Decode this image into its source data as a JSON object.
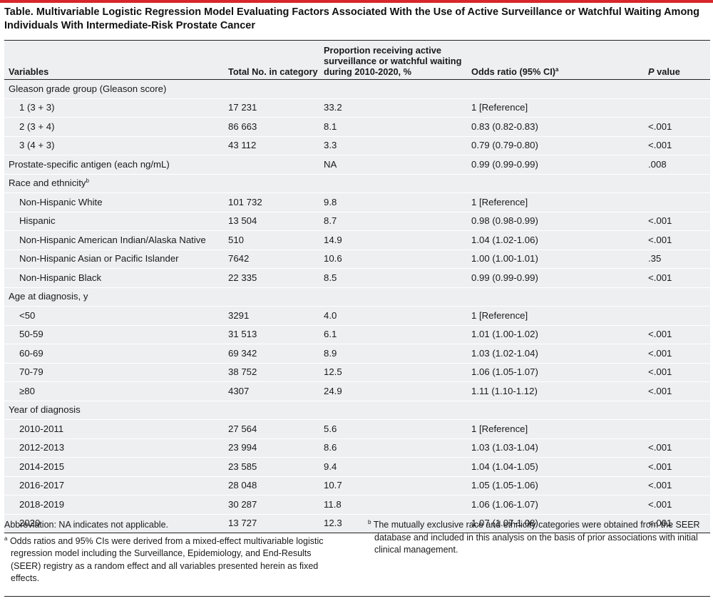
{
  "title": "Table. Multivariable Logistic Regression Model Evaluating Factors Associated With the Use of Active Surveillance or Watchful Waiting Among Individuals With Intermediate-Risk Prostate Cancer",
  "columns": {
    "variables": "Variables",
    "total": "Total No. in category",
    "proportion": "Proportion receiving active surveillance or watchful waiting during 2010-2020, %",
    "odds_ratio": "Odds ratio (95% CI)",
    "odds_ratio_sup": "a",
    "p_value_p": "P",
    "p_value_rest": " value"
  },
  "rows": [
    {
      "label": "Gleason grade group (Gleason score)",
      "sup": "",
      "total": "",
      "prop": "",
      "or": "",
      "p": ""
    },
    {
      "label": "1 (3 + 3)",
      "sup": "",
      "total": "17 231",
      "prop": "33.2",
      "or": "1 [Reference]",
      "p": ""
    },
    {
      "label": "2 (3 + 4)",
      "sup": "",
      "total": "86 663",
      "prop": "8.1",
      "or": "0.83 (0.82-0.83)",
      "p": "<.001"
    },
    {
      "label": "3 (4 + 3)",
      "sup": "",
      "total": "43 112",
      "prop": "3.3",
      "or": "0.79 (0.79-0.80)",
      "p": "<.001"
    },
    {
      "label": "Prostate-specific antigen (each ng/mL)",
      "sup": "",
      "total": "",
      "prop": "NA",
      "or": "0.99 (0.99-0.99)",
      "p": ".008"
    },
    {
      "label": "Race and ethnicity",
      "sup": "b",
      "total": "",
      "prop": "",
      "or": "",
      "p": ""
    },
    {
      "label": "Non-Hispanic White",
      "sup": "",
      "total": "101 732",
      "prop": "9.8",
      "or": "1 [Reference]",
      "p": ""
    },
    {
      "label": "Hispanic",
      "sup": "",
      "total": "13 504",
      "prop": "8.7",
      "or": "0.98 (0.98-0.99)",
      "p": "<.001"
    },
    {
      "label": "Non-Hispanic American Indian/Alaska Native",
      "sup": "",
      "total": "510",
      "prop": "14.9",
      "or": "1.04 (1.02-1.06)",
      "p": "<.001"
    },
    {
      "label": "Non-Hispanic Asian or Pacific Islander",
      "sup": "",
      "total": "7642",
      "prop": "10.6",
      "or": "1.00 (1.00-1.01)",
      "p": ".35"
    },
    {
      "label": "Non-Hispanic Black",
      "sup": "",
      "total": "22 335",
      "prop": "8.5",
      "or": "0.99 (0.99-0.99)",
      "p": "<.001"
    },
    {
      "label": "Age at diagnosis, y",
      "sup": "",
      "total": "",
      "prop": "",
      "or": "",
      "p": ""
    },
    {
      "label": "<50",
      "sup": "",
      "total": "3291",
      "prop": "4.0",
      "or": "1 [Reference]",
      "p": ""
    },
    {
      "label": "50-59",
      "sup": "",
      "total": "31 513",
      "prop": "6.1",
      "or": "1.01 (1.00-1.02)",
      "p": "<.001"
    },
    {
      "label": "60-69",
      "sup": "",
      "total": "69 342",
      "prop": "8.9",
      "or": "1.03 (1.02-1.04)",
      "p": "<.001"
    },
    {
      "label": "70-79",
      "sup": "",
      "total": "38 752",
      "prop": "12.5",
      "or": "1.06 (1.05-1.07)",
      "p": "<.001"
    },
    {
      "label": "≥80",
      "sup": "",
      "total": "4307",
      "prop": "24.9",
      "or": "1.11 (1.10-1.12)",
      "p": "<.001"
    },
    {
      "label": "Year of diagnosis",
      "sup": "",
      "total": "",
      "prop": "",
      "or": "",
      "p": ""
    },
    {
      "label": "2010-2011",
      "sup": "",
      "total": "27 564",
      "prop": "5.6",
      "or": "1 [Reference]",
      "p": ""
    },
    {
      "label": "2012-2013",
      "sup": "",
      "total": "23 994",
      "prop": "8.6",
      "or": "1.03 (1.03-1.04)",
      "p": "<.001"
    },
    {
      "label": "2014-2015",
      "sup": "",
      "total": "23 585",
      "prop": "9.4",
      "or": "1.04 (1.04-1.05)",
      "p": "<.001"
    },
    {
      "label": "2016-2017",
      "sup": "",
      "total": "28 048",
      "prop": "10.7",
      "or": "1.05 (1.05-1.06)",
      "p": "<.001"
    },
    {
      "label": "2018-2019",
      "sup": "",
      "total": "30 287",
      "prop": "11.8",
      "or": "1.06 (1.06-1.07)",
      "p": "<.001"
    },
    {
      "label": "2020",
      "sup": "",
      "total": "13 727",
      "prop": "12.3",
      "or": "1.07 (1.07-1.08)",
      "p": "<.001"
    }
  ],
  "footnotes": {
    "abbreviation": "Abbreviation: NA indicates not applicable.",
    "a_marker": "a",
    "a_text": "Odds ratios and 95% CIs were derived from a mixed-effect multivariable logistic regression model including the Surveillance, Epidemiology, and End-Results (SEER) registry as a random effect and all variables presented herein as fixed effects.",
    "b_marker": "b",
    "b_text": "The mutually exclusive race and ethnicity categories were obtained from the SEER database and included in this analysis on the basis of prior associations with initial clinical management."
  },
  "colors": {
    "accent_rule": "#d9262c",
    "table_bg": "#eeeff1"
  }
}
